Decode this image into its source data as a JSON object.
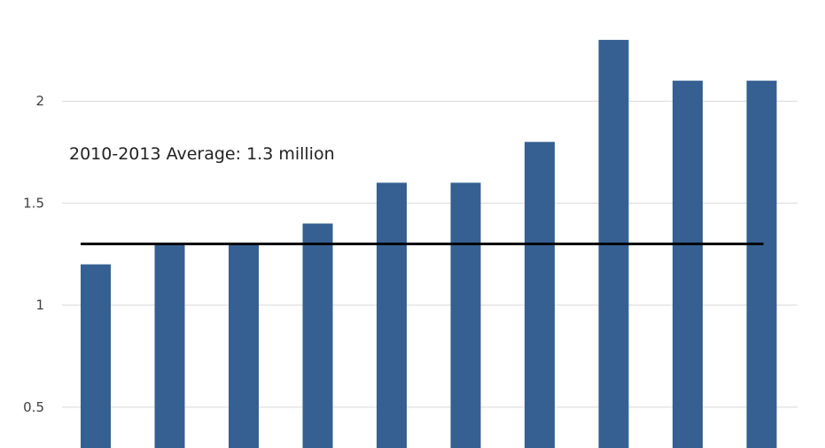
{
  "chart_data": {
    "type": "bar",
    "categories": [
      "",
      "",
      "",
      "",
      "",
      "",
      "",
      "",
      "",
      ""
    ],
    "values": [
      1.2,
      1.3,
      1.3,
      1.4,
      1.6,
      1.6,
      1.8,
      2.3,
      2.1,
      2.1
    ],
    "y_ticks": [
      "0.5",
      "1",
      "1.5",
      "2"
    ],
    "ylim": [
      0.3,
      2.4
    ],
    "grid": true,
    "bar_color": "#366092",
    "reference_line": {
      "value": 1.3,
      "color": "#000000",
      "label": "2010-2013 Average: 1.3 million"
    }
  }
}
